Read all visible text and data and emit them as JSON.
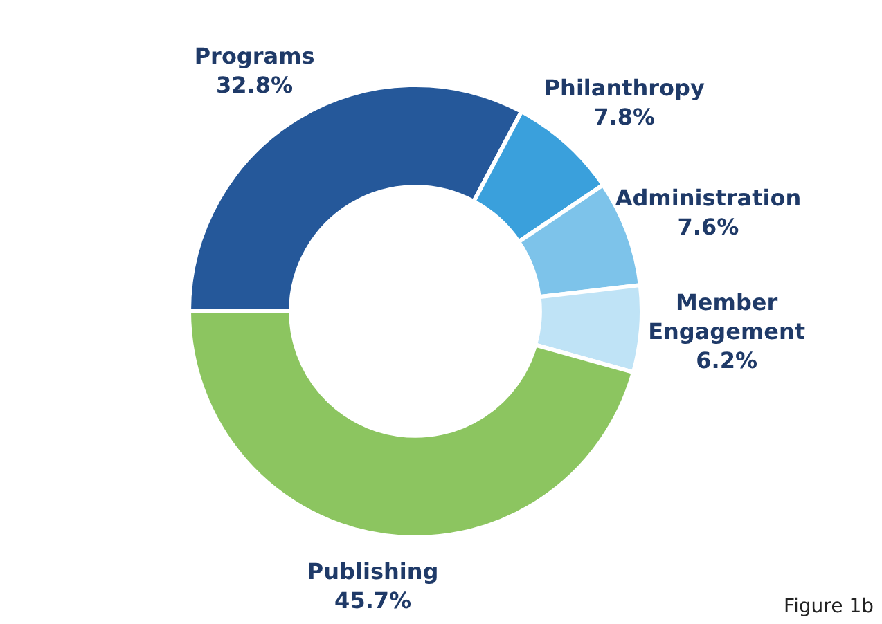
{
  "chart_data": {
    "type": "donut",
    "categories": [
      "Programs",
      "Philanthropy",
      "Administration",
      "Member Engagement",
      "Publishing"
    ],
    "values": [
      32.8,
      7.8,
      7.6,
      6.2,
      45.7
    ],
    "colors": [
      "#25589a",
      "#3aa0dc",
      "#7dc3ea",
      "#bfe3f6",
      "#8cc560"
    ],
    "value_labels": [
      "32.8%",
      "7.8%",
      "7.6%",
      "6.2%",
      "45.7%"
    ],
    "legend": false,
    "annotations": [
      "Figure 1b"
    ]
  }
}
